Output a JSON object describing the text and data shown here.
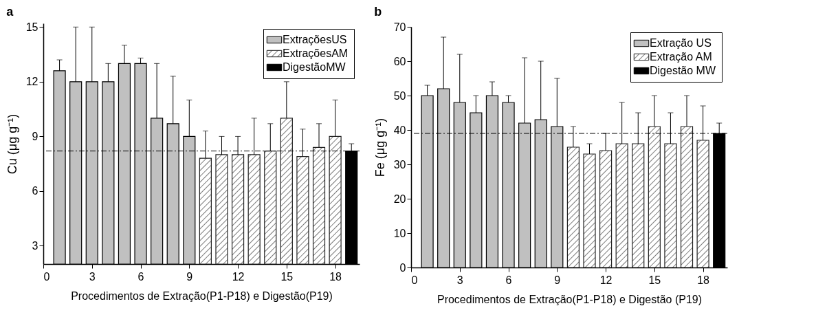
{
  "chart_data": [
    {
      "type": "bar",
      "title": "a",
      "xlabel": "Procedimentos de Extração(P1-P18) e Digestão(P19)",
      "ylabel": "Cu (μg g⁻¹)",
      "legend": "top right",
      "xlim": [
        0,
        19.5
      ],
      "ylim": [
        2,
        15.2
      ],
      "xticks": [
        0,
        3,
        6,
        9,
        12,
        15,
        18
      ],
      "yticks": [
        3,
        6,
        9,
        12,
        15
      ],
      "ref_lines": [
        {
          "axis": "y",
          "value": 8.2,
          "line_style": "dashdot"
        }
      ],
      "series": [
        {
          "name": "ExtraçõesUS",
          "color": "#c0c0c0",
          "x": [
            1,
            2,
            3,
            4,
            5,
            6,
            7,
            8,
            9
          ],
          "values": [
            12.6,
            12,
            12,
            12,
            13,
            13,
            10,
            9.7,
            9
          ],
          "errors": [
            [
              12.6,
              13.2
            ],
            [
              12,
              15
            ],
            [
              12,
              15
            ],
            [
              12,
              13
            ],
            [
              13,
              14
            ],
            [
              13,
              13.3
            ],
            [
              10,
              13
            ],
            [
              9.7,
              12.3
            ],
            [
              9,
              11
            ]
          ]
        },
        {
          "name": "ExtraçõesAM",
          "color": "#222222",
          "x": [
            10,
            11,
            12,
            13,
            14,
            15,
            16,
            17,
            18
          ],
          "values": [
            7.8,
            8,
            8,
            8,
            8.2,
            10,
            7.9,
            8.4,
            9
          ],
          "errors": [
            [
              7.8,
              9.3
            ],
            [
              8,
              9
            ],
            [
              8,
              9
            ],
            [
              8,
              10
            ],
            [
              8.2,
              9.7
            ],
            [
              10,
              12
            ],
            [
              7.9,
              9.4
            ],
            [
              8.4,
              9.7
            ],
            [
              9,
              11
            ]
          ]
        },
        {
          "name": "DigestãoMW",
          "color": "#000000",
          "x": [
            19
          ],
          "values": [
            8.2
          ],
          "errors": [
            [
              8.2,
              8.6
            ]
          ]
        }
      ]
    },
    {
      "type": "bar",
      "title": "b",
      "xlabel": "Procedimentos de Extração(P1-P18) e Digestão (P19)",
      "ylabel": "Fe (μg g⁻¹)",
      "legend": "top right",
      "xlim": [
        0,
        19.5
      ],
      "ylim": [
        0,
        70
      ],
      "xticks": [
        0,
        3,
        6,
        9,
        12,
        15,
        18
      ],
      "yticks": [
        0,
        10,
        20,
        30,
        40,
        50,
        60,
        70
      ],
      "ref_lines": [
        {
          "axis": "y",
          "value": 39,
          "line_style": "dashdot"
        }
      ],
      "series": [
        {
          "name": "Extração US",
          "color": "#c0c0c0",
          "x": [
            1,
            2,
            3,
            4,
            5,
            6,
            7,
            8,
            9
          ],
          "values": [
            50,
            52,
            48,
            45,
            50,
            48,
            42,
            43,
            41
          ],
          "errors": [
            [
              50,
              53
            ],
            [
              52,
              67
            ],
            [
              48,
              62
            ],
            [
              45,
              50
            ],
            [
              50,
              54
            ],
            [
              48,
              50
            ],
            [
              42,
              61
            ],
            [
              43,
              60
            ],
            [
              41,
              55
            ]
          ]
        },
        {
          "name": "Extração AM",
          "color": "#222222",
          "x": [
            10,
            11,
            12,
            13,
            14,
            15,
            16,
            17,
            18
          ],
          "values": [
            35,
            33,
            34,
            36,
            36,
            41,
            36,
            41,
            37
          ],
          "errors": [
            [
              35,
              41
            ],
            [
              33,
              36
            ],
            [
              34,
              39
            ],
            [
              36,
              48
            ],
            [
              36,
              45
            ],
            [
              41,
              50
            ],
            [
              36,
              45
            ],
            [
              41,
              50
            ],
            [
              37,
              47
            ]
          ]
        },
        {
          "name": "Digestão MW",
          "color": "#000000",
          "x": [
            19
          ],
          "values": [
            39
          ],
          "errors": [
            [
              39,
              42
            ]
          ]
        }
      ]
    }
  ]
}
